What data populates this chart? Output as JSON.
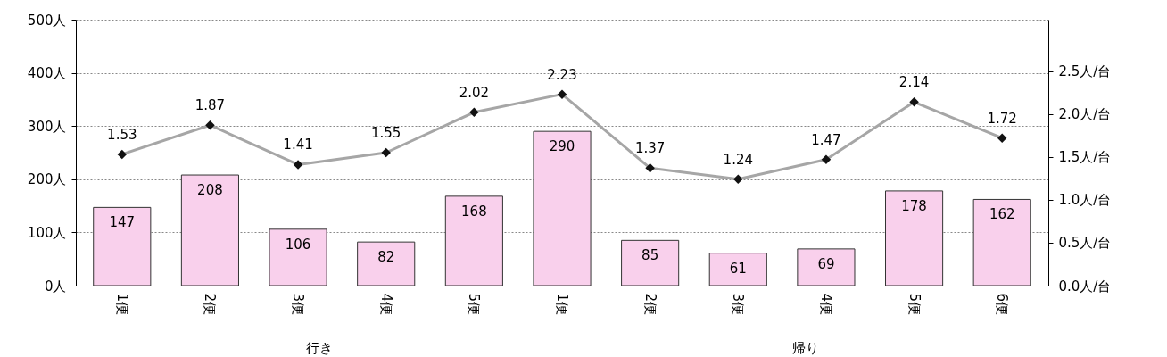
{
  "chart_data": {
    "type": "bar",
    "categories": [
      "1便",
      "2便",
      "3便",
      "4便",
      "5便",
      "1便",
      "2便",
      "3便",
      "4便",
      "5便",
      "6便"
    ],
    "series": [
      {
        "color": "#f9d0ec",
        "values": [
          147,
          208,
          106,
          82,
          168,
          290,
          85,
          61,
          69,
          178,
          162
        ]
      },
      {
        "type": "line",
        "axis": "y2",
        "color": "#a6a6a6",
        "values": [
          1.53,
          1.87,
          1.41,
          1.55,
          2.02,
          2.23,
          1.37,
          1.24,
          1.47,
          2.14,
          1.72
        ]
      }
    ],
    "ylim": [
      0,
      500
    ],
    "yticks": [
      {
        "value": 0,
        "label": "0人"
      },
      {
        "value": 100,
        "label": "100人"
      },
      {
        "value": 200,
        "label": "200人"
      },
      {
        "value": 300,
        "label": "300人"
      },
      {
        "value": 400,
        "label": "400人"
      },
      {
        "value": 500,
        "label": "500人"
      }
    ],
    "y2lim": [
      0,
      3.1
    ],
    "y2ticks": [
      {
        "value": 0,
        "label": "0.0人/台"
      },
      {
        "value": 0.5,
        "label": "0.5人/台"
      },
      {
        "value": 1,
        "label": "1.0人/台"
      },
      {
        "value": 1.5,
        "label": "1.5人/台"
      },
      {
        "value": 2,
        "label": "2.0人/台"
      },
      {
        "value": 2.5,
        "label": "2.5人/台"
      }
    ],
    "annotations": [
      "行き",
      "帰り"
    ],
    "data_labels": true,
    "grid": "y",
    "marker": "diamond",
    "line_style": "solid"
  }
}
